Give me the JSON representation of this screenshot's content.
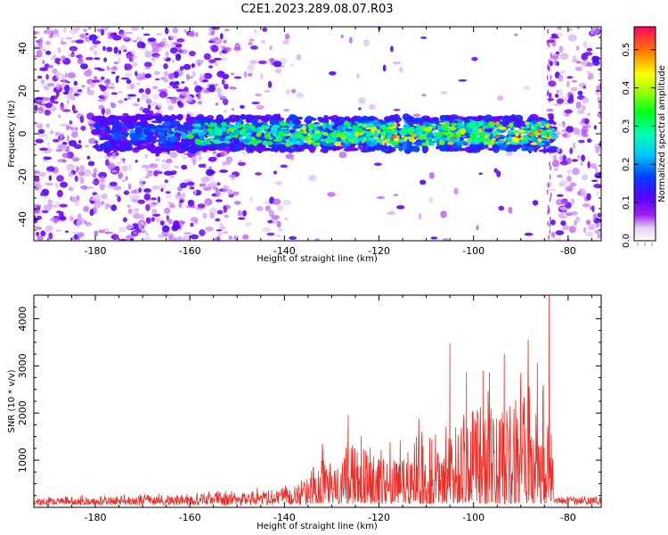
{
  "title": "C2E1.2023.289.08.07.R03",
  "chart_data": [
    {
      "type": "heatmap",
      "xlabel": "Height of straight line (km)",
      "ylabel": "Frequency (Hz)",
      "xlim": [
        -193,
        -73
      ],
      "ylim": [
        -50,
        50
      ],
      "xticks": [
        -180,
        -160,
        -140,
        -120,
        -100,
        -80
      ],
      "yticks": [
        -40,
        -20,
        0,
        20,
        40
      ],
      "colorbar": {
        "label": "Normalized spectral amplitude",
        "range": [
          0,
          0.56
        ],
        "ticks": [
          0.0,
          0.1,
          0.2,
          0.3,
          0.4,
          0.5
        ],
        "colormap": "rainbow (purple to red)"
      },
      "description_band": {
        "center_hz": 0,
        "half_width_hz": 8,
        "x_range": [
          -180,
          -83
        ]
      },
      "noise_regions": [
        [
          -193,
          -152
        ],
        [
          -152,
          -138
        ],
        [
          -84,
          -73
        ]
      ]
    },
    {
      "type": "line",
      "xlabel": "Height of straight line (km)",
      "ylabel": "SNR (10 * v/v)",
      "xlim": [
        -193,
        -73
      ],
      "ylim": [
        0,
        4500
      ],
      "xticks": [
        -180,
        -160,
        -140,
        -120,
        -100,
        -80
      ],
      "yticks": [
        1000,
        2000,
        3000,
        4000
      ],
      "color": "#e8302a",
      "envelope": {
        "x": [
          -193,
          -180,
          -160,
          -150,
          -140,
          -135,
          -130,
          -125,
          -120,
          -115,
          -110,
          -105,
          -100,
          -95,
          -90,
          -85,
          -84,
          -83,
          -80,
          -73
        ],
        "y": [
          200,
          250,
          300,
          380,
          450,
          700,
          1000,
          1200,
          1100,
          1300,
          1450,
          1600,
          1800,
          2000,
          2200,
          2300,
          2500,
          300,
          300,
          300
        ]
      },
      "peaks": [
        {
          "x": -126.5,
          "y": 1960
        },
        {
          "x": -105,
          "y": 3480
        },
        {
          "x": -101.5,
          "y": 2870
        },
        {
          "x": -98,
          "y": 2900
        },
        {
          "x": -93.5,
          "y": 3260
        },
        {
          "x": -90,
          "y": 2850
        },
        {
          "x": -86.5,
          "y": 3060
        },
        {
          "x": -84,
          "y": 4500
        }
      ]
    }
  ]
}
